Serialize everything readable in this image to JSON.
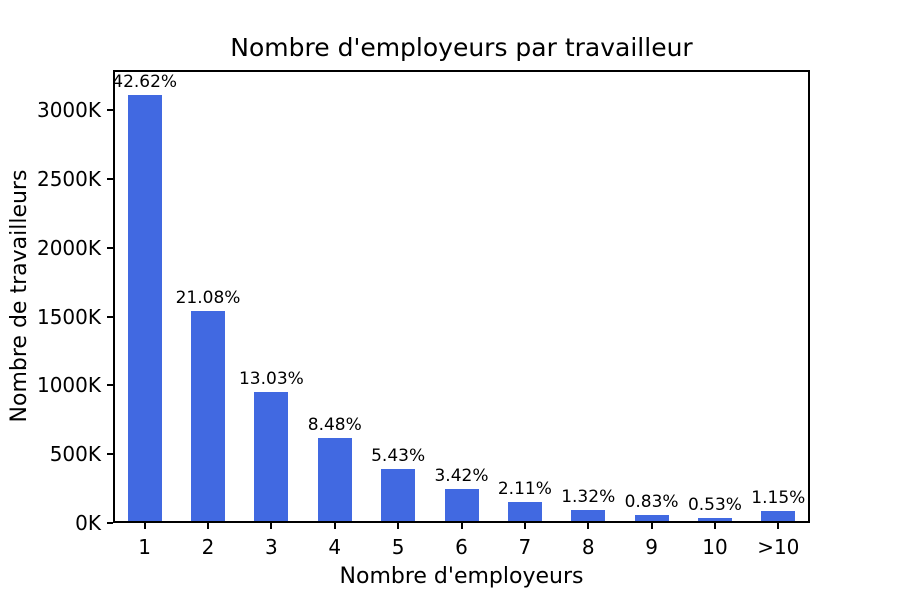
{
  "figure": {
    "background": "#ffffff"
  },
  "chart_data": {
    "type": "bar",
    "title": "Nombre d'employeurs par travailleur",
    "xlabel": "Nombre d'employeurs",
    "ylabel": "Nombre de travailleurs",
    "categories": [
      "1",
      "2",
      "3",
      "4",
      "5",
      "6",
      "7",
      "8",
      "9",
      "10",
      ">10"
    ],
    "values_K": [
      3111,
      1539,
      951,
      619,
      396,
      250,
      154,
      96,
      61,
      39,
      84
    ],
    "bar_labels": [
      "42.62%",
      "21.08%",
      "13.03%",
      "8.48%",
      "5.43%",
      "3.42%",
      "2.11%",
      "1.32%",
      "0.83%",
      "0.53%",
      "1.15%"
    ],
    "y_tick_labels": [
      "0K",
      "500K",
      "1000K",
      "1500K",
      "2000K",
      "2500K",
      "3000K"
    ],
    "y_tick_values_K": [
      0,
      500,
      1000,
      1500,
      2000,
      2500,
      3000
    ],
    "ylim_K": [
      0,
      3291
    ],
    "bar_color": "#4169E1",
    "axis_color": "#000000",
    "grid": false,
    "legend": "none"
  }
}
